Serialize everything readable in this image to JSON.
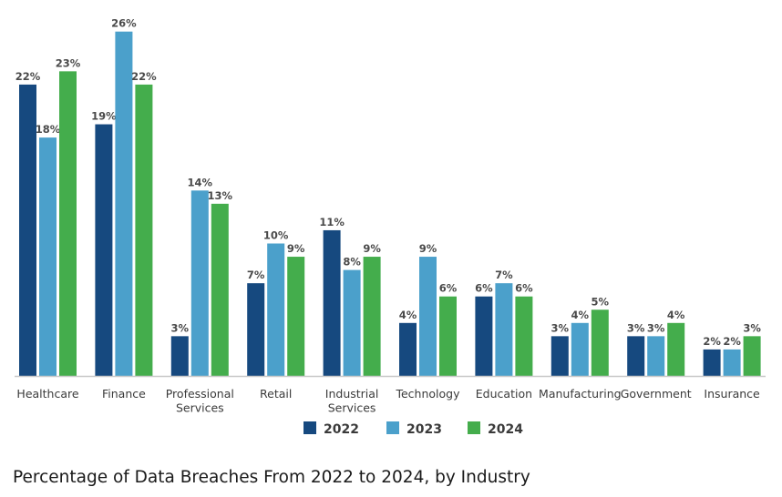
{
  "chart_data": {
    "type": "bar",
    "title": "Percentage of Data Breaches From 2022 to 2024, by Industry",
    "xlabel": "",
    "ylabel": "",
    "ylim": [
      0,
      26
    ],
    "grid": false,
    "legend_position": "bottom-center",
    "value_format": "percent",
    "categories": [
      [
        "Healthcare"
      ],
      [
        "Finance"
      ],
      [
        "Professional",
        "Services"
      ],
      [
        "Retail"
      ],
      [
        "Industrial",
        "Services"
      ],
      [
        "Technology"
      ],
      [
        "Education"
      ],
      [
        "Manufacturing"
      ],
      [
        "Government"
      ],
      [
        "Insurance"
      ]
    ],
    "series": [
      {
        "name": "2022",
        "color": "#16497f",
        "values": [
          22,
          19,
          3,
          7,
          11,
          4,
          6,
          3,
          3,
          2
        ]
      },
      {
        "name": "2023",
        "color": "#4ba0cb",
        "values": [
          18,
          26,
          14,
          10,
          8,
          9,
          7,
          4,
          3,
          2
        ]
      },
      {
        "name": "2024",
        "color": "#44ad4c",
        "values": [
          23,
          22,
          13,
          9,
          9,
          6,
          6,
          5,
          4,
          3
        ]
      }
    ]
  },
  "caption": "Percentage of Data Breaches From 2022 to 2024, by Industry"
}
